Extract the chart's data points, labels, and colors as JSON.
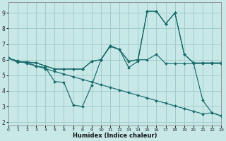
{
  "xlabel": "Humidex (Indice chaleur)",
  "xlim": [
    0,
    23
  ],
  "ylim": [
    1.8,
    9.7
  ],
  "yticks": [
    2,
    3,
    4,
    5,
    6,
    7,
    8,
    9
  ],
  "xticks": [
    0,
    1,
    2,
    3,
    4,
    5,
    6,
    7,
    8,
    9,
    10,
    11,
    12,
    13,
    14,
    15,
    16,
    17,
    18,
    19,
    20,
    21,
    22,
    23
  ],
  "background_color": "#c8e8e8",
  "grid_color": "#a0cccc",
  "line_color": "#1a6b6b",
  "series": [
    {
      "x": [
        0,
        1,
        2,
        3,
        4,
        5,
        6,
        7,
        8,
        9,
        10,
        11,
        12,
        13,
        14,
        15,
        16,
        17,
        18,
        19,
        20,
        21,
        22,
        23
      ],
      "y": [
        6.1,
        5.85,
        5.85,
        5.6,
        5.5,
        4.6,
        4.55,
        3.1,
        3.0,
        4.35,
        6.0,
        6.85,
        6.65,
        5.5,
        5.9,
        9.1,
        9.1,
        8.3,
        9.0,
        6.35,
        5.8,
        3.4,
        2.6,
        2.4
      ]
    },
    {
      "x": [
        0,
        1,
        2,
        3,
        4,
        5,
        6,
        7,
        8,
        9,
        10,
        11,
        12,
        13,
        14,
        15,
        16,
        17,
        18,
        19,
        20,
        21,
        22,
        23
      ],
      "y": [
        6.1,
        5.85,
        5.85,
        5.8,
        5.6,
        5.4,
        5.4,
        5.4,
        5.4,
        5.9,
        6.0,
        6.9,
        6.65,
        5.9,
        6.0,
        9.1,
        9.1,
        8.3,
        9.0,
        6.35,
        5.8,
        5.8,
        5.8,
        5.8
      ]
    },
    {
      "x": [
        0,
        1,
        2,
        3,
        4,
        5,
        6,
        7,
        8,
        9,
        10,
        11,
        12,
        13,
        14,
        15,
        16,
        17,
        18,
        19,
        20,
        21,
        22,
        23
      ],
      "y": [
        6.1,
        5.85,
        5.85,
        5.8,
        5.6,
        5.4,
        5.4,
        5.4,
        5.4,
        5.9,
        6.0,
        6.9,
        6.65,
        5.9,
        6.0,
        6.0,
        6.35,
        5.75,
        5.75,
        5.75,
        5.75,
        5.75,
        5.75,
        5.75
      ]
    },
    {
      "x": [
        0,
        1,
        2,
        3,
        4,
        5,
        6,
        7,
        8,
        9,
        10,
        11,
        12,
        13,
        14,
        15,
        16,
        17,
        18,
        19,
        20,
        21,
        22,
        23
      ],
      "y": [
        6.1,
        5.93,
        5.76,
        5.59,
        5.42,
        5.25,
        5.08,
        4.91,
        4.74,
        4.57,
        4.4,
        4.23,
        4.06,
        3.89,
        3.72,
        3.55,
        3.38,
        3.21,
        3.04,
        2.87,
        2.7,
        2.53,
        2.6,
        2.4
      ]
    }
  ]
}
